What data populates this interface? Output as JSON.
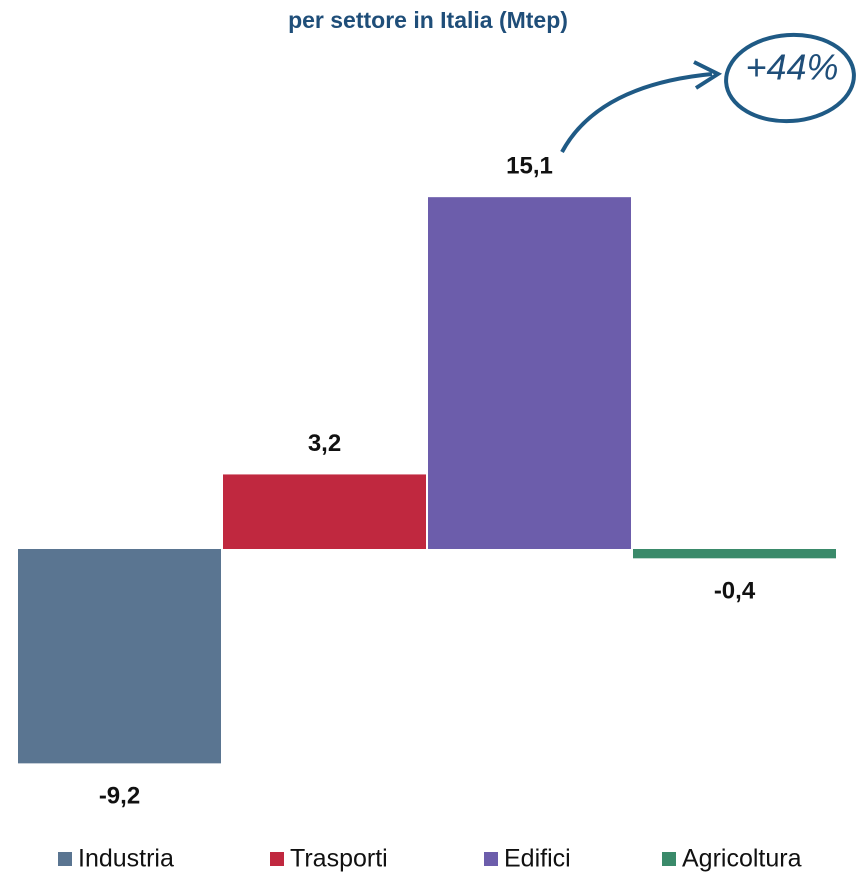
{
  "chart_data": {
    "type": "bar",
    "title": "per settore in Italia (Mtep)",
    "annotation": "+44%",
    "categories": [
      "Industria",
      "Trasporti",
      "Edifici",
      "Agricoltura"
    ],
    "values": [
      -9.2,
      3.2,
      15.1,
      -0.4
    ],
    "value_labels": [
      "-9,2",
      "3,2",
      "15,1",
      "-0,4"
    ],
    "colors": [
      "#5a7591",
      "#c0283f",
      "#6c5dab",
      "#3a8a6a"
    ],
    "legend": "bottom"
  }
}
